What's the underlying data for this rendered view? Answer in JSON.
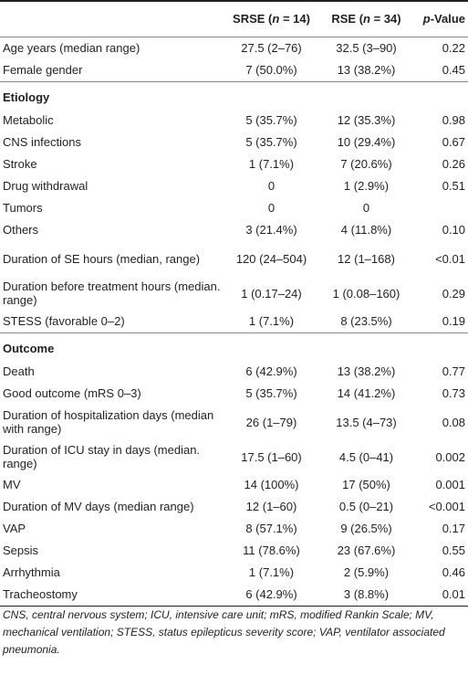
{
  "header": {
    "col1": "",
    "col2": "SRSE (n = 14)",
    "col3": "RSE (n = 34)",
    "col4": "p-Value"
  },
  "rows": [
    {
      "label": "Age years (median range)",
      "srse": "27.5 (2–76)",
      "rse": "32.5 (3–90)",
      "p": "0.22"
    },
    {
      "label": "Female gender",
      "srse": "7 (50.0%)",
      "rse": "13 (38.2%)",
      "p": "0.45"
    }
  ],
  "sections": [
    {
      "title": "Etiology",
      "rows": [
        {
          "label": "Metabolic",
          "srse": "5 (35.7%)",
          "rse": "12 (35.3%)",
          "p": "0.98"
        },
        {
          "label": "CNS infections",
          "srse": "5 (35.7%)",
          "rse": "10 (29.4%)",
          "p": "0.67"
        },
        {
          "label": "Stroke",
          "srse": "1 (7.1%)",
          "rse": "7 (20.6%)",
          "p": "0.26"
        },
        {
          "label": "Drug withdrawal",
          "srse": "0",
          "rse": "1 (2.9%)",
          "p": "0.51"
        },
        {
          "label": "Tumors",
          "srse": "0",
          "rse": "0",
          "p": ""
        },
        {
          "label": "Others",
          "srse": "3 (21.4%)",
          "rse": "4 (11.8%)",
          "p": "0.10"
        },
        {
          "label": "Duration of SE hours (median, range)",
          "srse": "120 (24–504)",
          "rse": "12 (1–168)",
          "p": "<0.01"
        },
        {
          "label": "Duration before treatment hours (median. range)",
          "srse": "1 (0.17–24)",
          "rse": "1 (0.08–160)",
          "p": "0.29"
        },
        {
          "label": "STESS (favorable 0–2)",
          "srse": "1 (7.1%)",
          "rse": "8 (23.5%)",
          "p": "0.19"
        }
      ]
    },
    {
      "title": "Outcome",
      "rows": [
        {
          "label": "Death",
          "srse": "6 (42.9%)",
          "rse": "13 (38.2%)",
          "p": "0.77"
        },
        {
          "label": "Good outcome (mRS 0–3)",
          "srse": "5 (35.7%)",
          "rse": "14 (41.2%)",
          "p": "0.73"
        },
        {
          "label": "Duration of hospitalization days (median with range)",
          "srse": "26 (1–79)",
          "rse": "13.5 (4–73)",
          "p": "0.08"
        },
        {
          "label": "Duration of ICU stay in days (median. range)",
          "srse": "17.5 (1–60)",
          "rse": "4.5 (0–41)",
          "p": "0.002"
        },
        {
          "label": "MV",
          "srse": "14 (100%)",
          "rse": "17 (50%)",
          "p": "0.001"
        },
        {
          "label": "Duration of MV days (median range)",
          "srse": "12 (1–60)",
          "rse": "0.5 (0–21)",
          "p": "<0.001"
        },
        {
          "label": "VAP",
          "srse": "8 (57.1%)",
          "rse": "9 (26.5%)",
          "p": "0.17"
        },
        {
          "label": "Sepsis",
          "srse": "11 (78.6%)",
          "rse": "23 (67.6%)",
          "p": "0.55"
        },
        {
          "label": "Arrhythmia",
          "srse": "1 (7.1%)",
          "rse": "2 (5.9%)",
          "p": "0.46"
        },
        {
          "label": "Tracheostomy",
          "srse": "6 (42.9%)",
          "rse": "3 (8.8%)",
          "p": "0.01"
        }
      ]
    }
  ],
  "footnote": "CNS, central nervous system; ICU, intensive care unit; mRS, modified Rankin Scale; MV, mechanical ventilation; STESS, status epilepticus severity score; VAP, ventilator associated pneumonia."
}
